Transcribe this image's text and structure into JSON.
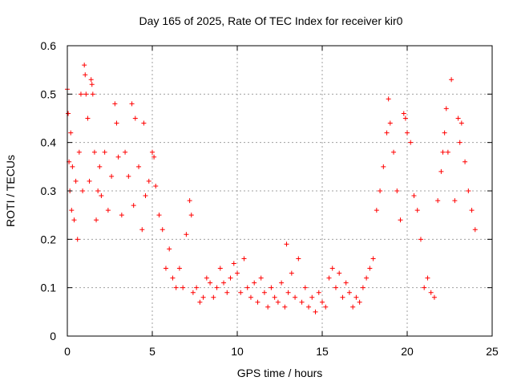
{
  "chart_data": {
    "type": "scatter",
    "title": "Day 165 of 2025, Rate Of TEC Index for receiver kir0",
    "xlabel": "GPS time / hours",
    "ylabel": "ROTI / TECUs",
    "xlim": [
      0,
      25
    ],
    "ylim": [
      0,
      0.6
    ],
    "xticks": [
      0,
      5,
      10,
      15,
      20,
      25
    ],
    "xtick_labels": [
      "0",
      "5",
      "10",
      "15",
      "20",
      "25"
    ],
    "yticks": [
      0,
      0.1,
      0.2,
      0.3,
      0.4,
      0.5,
      0.6
    ],
    "ytick_labels": [
      "0",
      "0.1",
      "0.2",
      "0.3",
      "0.4",
      "0.5",
      "0.6"
    ],
    "grid": true,
    "marker": "+",
    "color": "#ff0000",
    "series": [
      {
        "name": "ROTI",
        "x": [
          0.0,
          0.05,
          0.1,
          0.15,
          0.2,
          0.25,
          0.3,
          0.4,
          0.5,
          0.6,
          0.7,
          0.8,
          0.9,
          1.0,
          1.05,
          1.1,
          1.2,
          1.3,
          1.4,
          1.45,
          1.5,
          1.6,
          1.7,
          1.8,
          1.9,
          2.0,
          2.2,
          2.4,
          2.6,
          2.8,
          2.9,
          3.0,
          3.2,
          3.4,
          3.6,
          3.8,
          3.9,
          4.0,
          4.2,
          4.4,
          4.5,
          4.6,
          4.8,
          5.0,
          5.1,
          5.2,
          5.4,
          5.6,
          5.8,
          6.0,
          6.2,
          6.4,
          6.6,
          6.8,
          7.0,
          7.2,
          7.3,
          7.4,
          7.6,
          7.8,
          8.0,
          8.2,
          8.4,
          8.6,
          8.8,
          9.0,
          9.2,
          9.4,
          9.6,
          9.8,
          10.0,
          10.2,
          10.4,
          10.6,
          10.8,
          11.0,
          11.2,
          11.4,
          11.6,
          11.8,
          12.0,
          12.2,
          12.4,
          12.6,
          12.8,
          12.9,
          13.0,
          13.2,
          13.4,
          13.6,
          13.8,
          14.0,
          14.2,
          14.4,
          14.6,
          14.8,
          15.0,
          15.2,
          15.4,
          15.6,
          15.8,
          16.0,
          16.2,
          16.4,
          16.6,
          16.8,
          17.0,
          17.2,
          17.4,
          17.6,
          17.8,
          18.0,
          18.2,
          18.4,
          18.6,
          18.8,
          18.9,
          19.0,
          19.2,
          19.4,
          19.6,
          19.8,
          19.9,
          20.0,
          20.2,
          20.4,
          20.6,
          20.8,
          21.0,
          21.2,
          21.4,
          21.6,
          21.8,
          22.0,
          22.1,
          22.2,
          22.3,
          22.4,
          22.6,
          22.8,
          23.0,
          23.1,
          23.2,
          23.4,
          23.6,
          23.8,
          24.0
        ],
        "y": [
          0.51,
          0.46,
          0.36,
          0.3,
          0.42,
          0.26,
          0.35,
          0.24,
          0.32,
          0.2,
          0.38,
          0.5,
          0.3,
          0.56,
          0.54,
          0.5,
          0.45,
          0.32,
          0.53,
          0.52,
          0.5,
          0.38,
          0.24,
          0.3,
          0.35,
          0.29,
          0.38,
          0.26,
          0.33,
          0.48,
          0.44,
          0.37,
          0.25,
          0.38,
          0.33,
          0.48,
          0.27,
          0.45,
          0.35,
          0.22,
          0.44,
          0.29,
          0.32,
          0.38,
          0.37,
          0.31,
          0.25,
          0.22,
          0.14,
          0.18,
          0.12,
          0.1,
          0.14,
          0.1,
          0.21,
          0.28,
          0.25,
          0.09,
          0.1,
          0.07,
          0.08,
          0.12,
          0.11,
          0.08,
          0.1,
          0.14,
          0.11,
          0.09,
          0.12,
          0.15,
          0.13,
          0.09,
          0.16,
          0.1,
          0.08,
          0.11,
          0.07,
          0.12,
          0.09,
          0.06,
          0.1,
          0.08,
          0.07,
          0.11,
          0.06,
          0.19,
          0.09,
          0.13,
          0.08,
          0.16,
          0.07,
          0.1,
          0.06,
          0.08,
          0.05,
          0.09,
          0.07,
          0.06,
          0.12,
          0.14,
          0.1,
          0.13,
          0.08,
          0.11,
          0.09,
          0.06,
          0.08,
          0.07,
          0.1,
          0.12,
          0.14,
          0.16,
          0.26,
          0.3,
          0.35,
          0.42,
          0.49,
          0.44,
          0.38,
          0.3,
          0.24,
          0.46,
          0.45,
          0.42,
          0.4,
          0.29,
          0.26,
          0.2,
          0.1,
          0.12,
          0.09,
          0.08,
          0.28,
          0.34,
          0.38,
          0.42,
          0.47,
          0.38,
          0.53,
          0.28,
          0.45,
          0.4,
          0.44,
          0.36,
          0.3,
          0.26,
          0.22
        ]
      }
    ]
  }
}
